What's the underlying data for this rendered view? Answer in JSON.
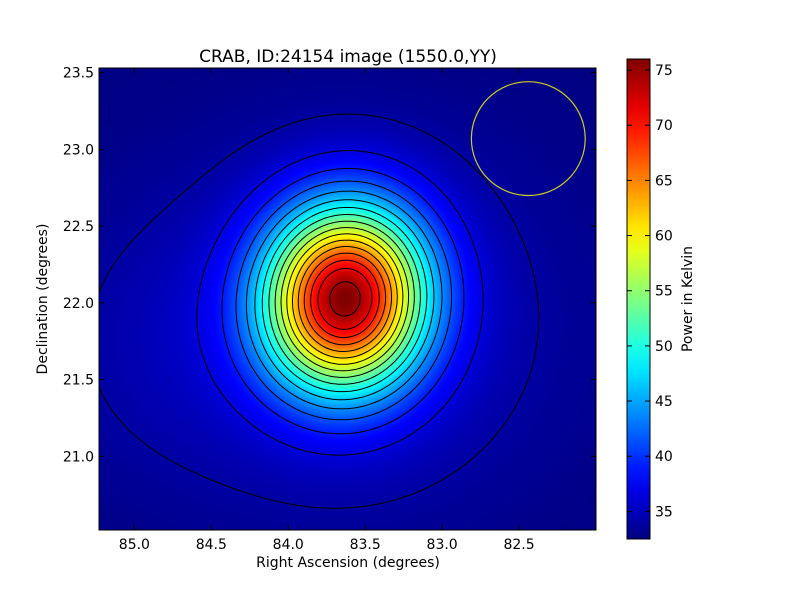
{
  "chart_data": {
    "type": "heatmap",
    "title": "CRAB, ID:24154 image (1550.0,YY)",
    "xlabel": "Right Ascension (degrees)",
    "ylabel": "Declination (degrees)",
    "colorbar_label": "Power in Kelvin",
    "colormap": "jet",
    "xlim": [
      85.23,
      82.0
    ],
    "ylim": [
      20.52,
      23.53
    ],
    "x_ticks": [
      85.0,
      84.5,
      84.0,
      83.5,
      83.0,
      82.5
    ],
    "x_tick_labels": [
      "85.0",
      "84.5",
      "84.0",
      "83.5",
      "83.0",
      "82.5"
    ],
    "y_ticks": [
      21.0,
      21.5,
      22.0,
      22.5,
      23.0,
      23.5
    ],
    "y_tick_labels": [
      "21.0",
      "21.5",
      "22.0",
      "22.5",
      "23.0",
      "23.5"
    ],
    "colorbar_range": [
      32.5,
      76
    ],
    "colorbar_ticks": [
      35,
      40,
      45,
      50,
      55,
      60,
      65,
      70,
      75
    ],
    "colorbar_tick_labels": [
      "35",
      "40",
      "45",
      "50",
      "55",
      "60",
      "65",
      "70",
      "75"
    ],
    "peak": {
      "ra": 83.63,
      "dec": 22.03,
      "value": 76
    },
    "background_level": 32.5,
    "contour_levels": [
      34,
      36.5,
      39,
      41.5,
      44,
      46.5,
      49,
      51.5,
      54,
      56.5,
      59,
      61.5,
      64,
      66.5,
      69,
      71.5,
      74.5
    ],
    "contour_color": "#000000",
    "beam_circle": {
      "ra": 82.44,
      "dec": 23.07,
      "radius_deg": 0.37,
      "color": "#cccc22"
    }
  }
}
